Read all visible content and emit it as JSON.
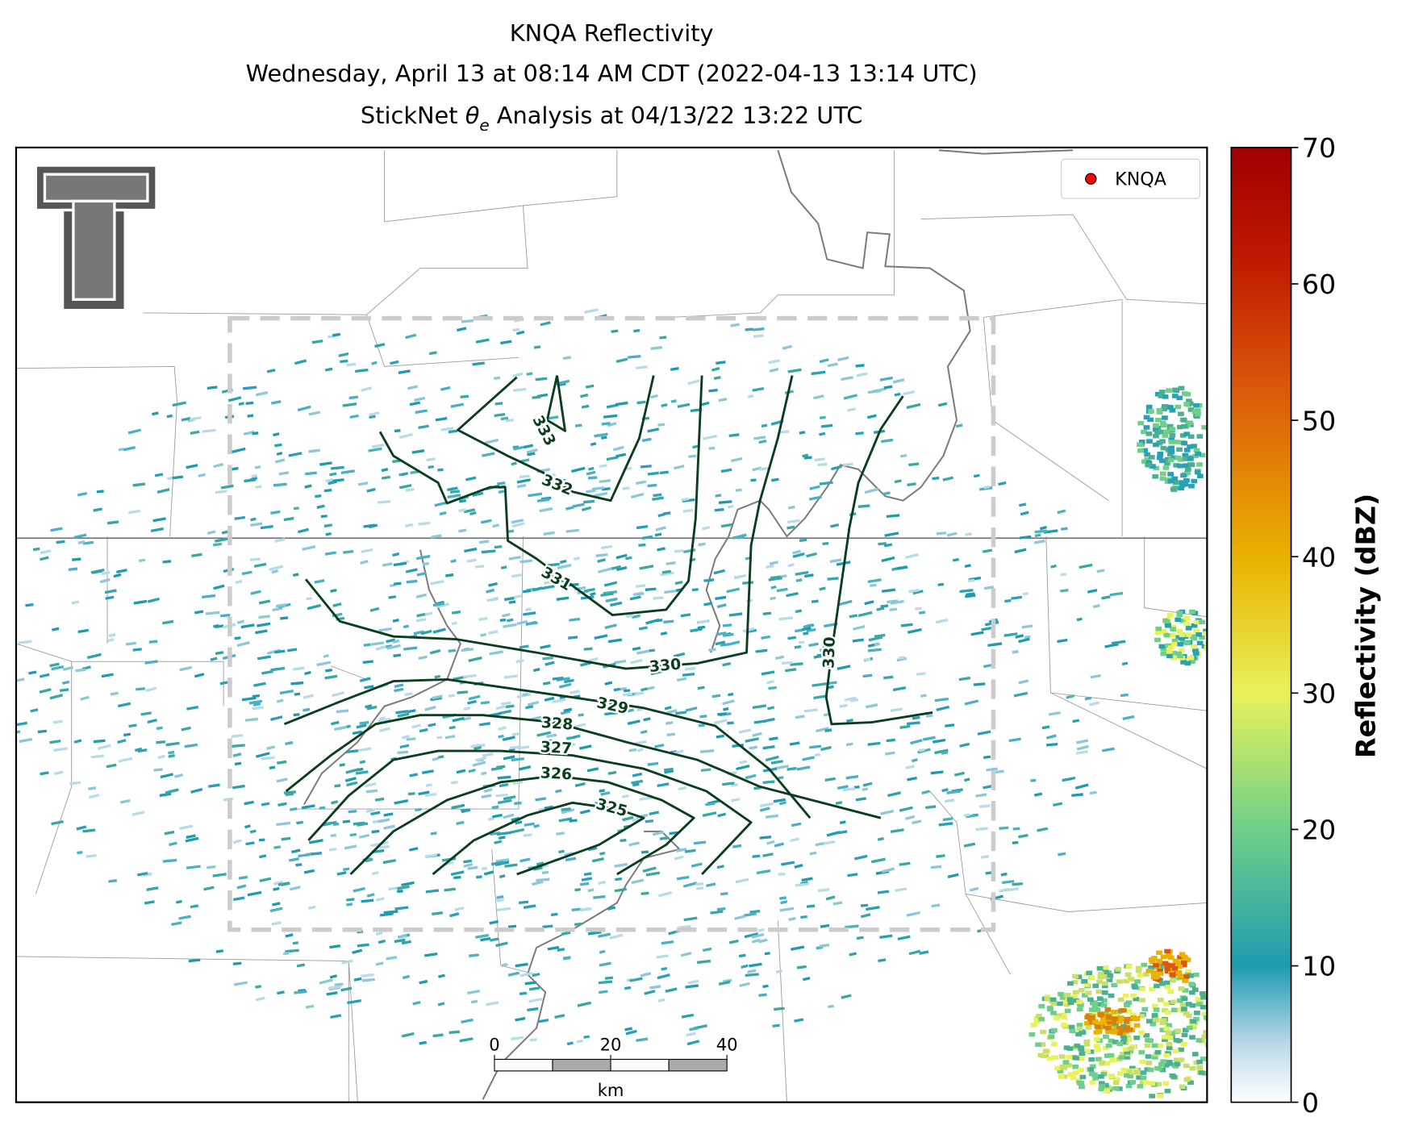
{
  "title": {
    "line1": "KNQA Reflectivity",
    "line2": "Wednesday, April 13 at 08:14 AM CDT (2022-04-13 13:14 UTC)",
    "line3_prefix": "StickNet",
    "line3_symbol": "θ",
    "line3_subscript": "e",
    "line3_suffix": "Analysis at 04/13/22 13:22 UTC"
  },
  "legend": {
    "label": "KNQA",
    "color": "#ff0000"
  },
  "contours": [
    {
      "label": 333
    },
    {
      "label": 332
    },
    {
      "label": 331
    },
    {
      "label": 330
    },
    {
      "label": 330
    },
    {
      "label": 329
    },
    {
      "label": 328
    },
    {
      "label": 327
    },
    {
      "label": 326
    },
    {
      "label": 325
    }
  ],
  "colorbar": {
    "label": "Reflectivity (dBZ)",
    "lim": [
      0,
      70
    ],
    "ticks": [
      0,
      10,
      20,
      30,
      40,
      50,
      60,
      70
    ]
  },
  "scale_bar": {
    "ticks": [
      0,
      20,
      40
    ],
    "lim": [
      0,
      40
    ],
    "unit": "km"
  }
}
